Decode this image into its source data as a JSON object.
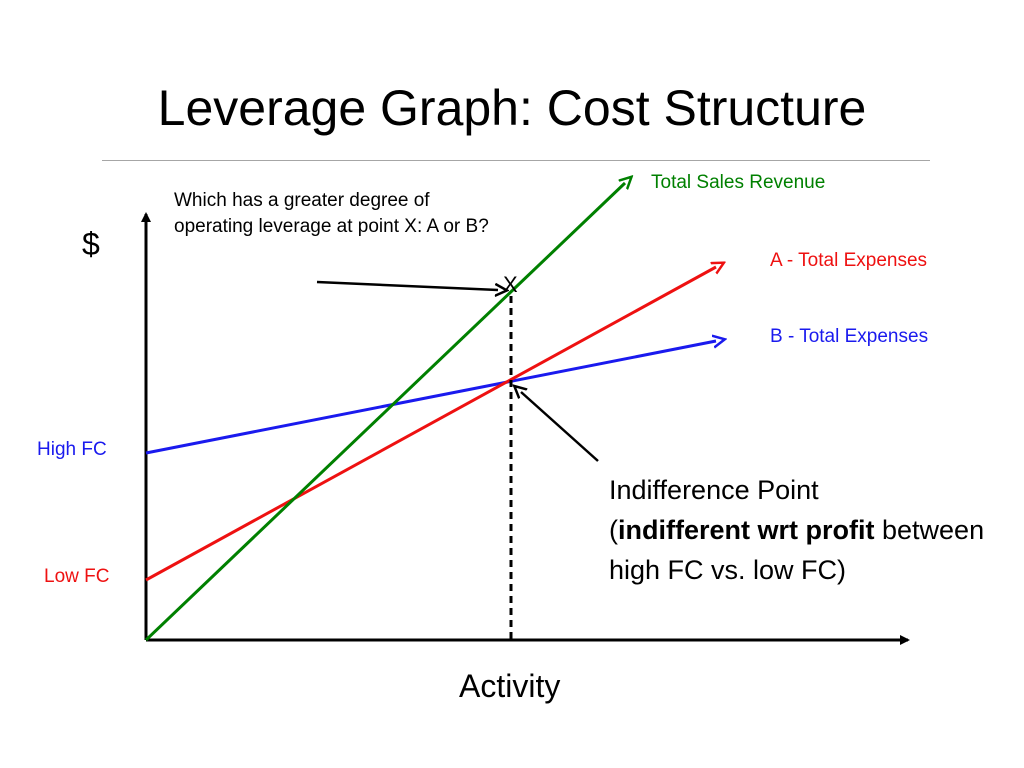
{
  "slide": {
    "title": "Leverage Graph: Cost Structure"
  },
  "diagram": {
    "question": "Which has a greater degree of operating leverage at point X: A or B?",
    "y_axis_label": "$",
    "x_axis_label": "Activity",
    "point_x_label": "X",
    "legend": {
      "revenue": "Total Sales Revenue",
      "a_expenses": "A - Total Expenses",
      "b_expenses": "B - Total Expenses"
    },
    "intercepts": {
      "high_fc": "High FC",
      "low_fc": "Low FC"
    },
    "indifference_note": {
      "line1": "Indifference Point",
      "open_paren": "(",
      "bold": "indifferent wrt profit",
      "rest": "between high FC vs. low FC)"
    },
    "colors": {
      "revenue": "#008000",
      "a_expenses": "#ee1111",
      "b_expenses": "#1a1aee",
      "axes": "#000000"
    }
  }
}
